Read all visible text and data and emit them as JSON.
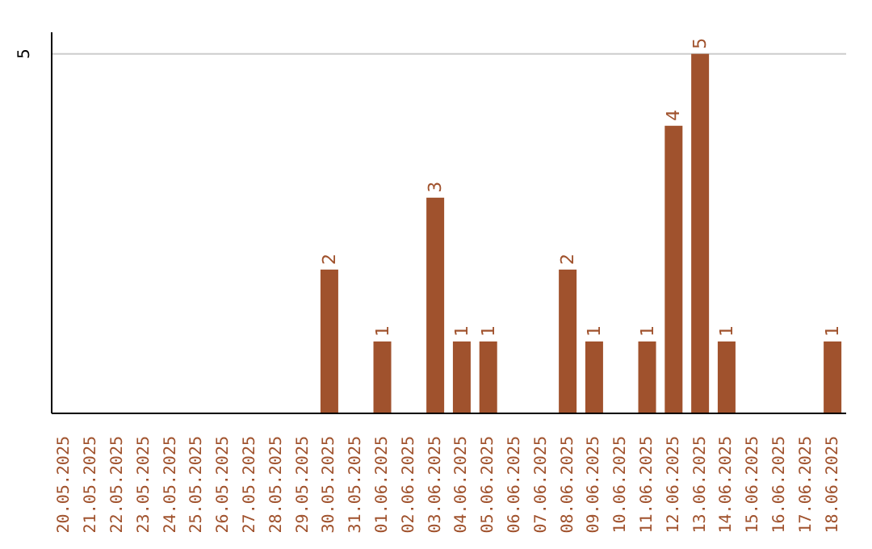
{
  "chart_data": {
    "type": "bar",
    "categories": [
      "20.05.2025",
      "21.05.2025",
      "22.05.2025",
      "23.05.2025",
      "24.05.2025",
      "25.05.2025",
      "26.05.2025",
      "27.05.2025",
      "28.05.2025",
      "29.05.2025",
      "30.05.2025",
      "31.05.2025",
      "01.06.2025",
      "02.06.2025",
      "03.06.2025",
      "04.06.2025",
      "05.06.2025",
      "06.06.2025",
      "07.06.2025",
      "08.06.2025",
      "09.06.2025",
      "10.06.2025",
      "11.06.2025",
      "12.06.2025",
      "13.06.2025",
      "14.06.2025",
      "15.06.2025",
      "16.06.2025",
      "17.06.2025",
      "18.06.2025"
    ],
    "values": [
      0,
      0,
      0,
      0,
      0,
      0,
      0,
      0,
      0,
      0,
      2,
      0,
      1,
      0,
      3,
      1,
      1,
      0,
      0,
      2,
      1,
      0,
      1,
      4,
      5,
      1,
      0,
      0,
      0,
      1
    ],
    "value_labels": [
      null,
      null,
      null,
      null,
      null,
      null,
      null,
      null,
      null,
      null,
      "2",
      null,
      "1",
      null,
      "3",
      "1",
      "1",
      null,
      null,
      "2",
      "1",
      null,
      "1",
      "4",
      "5",
      "1",
      null,
      null,
      null,
      "1"
    ],
    "color": "#a0522d",
    "ylim": [
      0,
      5.3
    ],
    "yticks": [
      5
    ],
    "grid": "y"
  }
}
